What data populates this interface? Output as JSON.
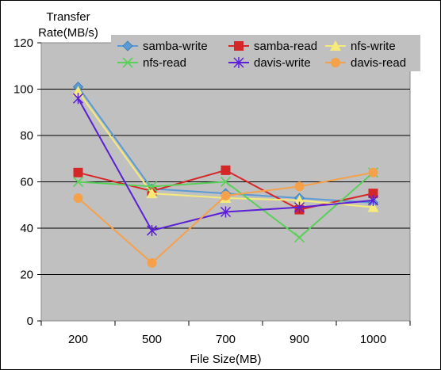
{
  "chart_data": {
    "type": "line",
    "title": "",
    "ylabel_lines": [
      "Transfer",
      "Rate(MB/s)"
    ],
    "xlabel": "File Size(MB)",
    "categories": [
      "200",
      "500",
      "700",
      "900",
      "1000"
    ],
    "ylim": [
      0,
      120
    ],
    "yticks": [
      "0",
      "20",
      "40",
      "60",
      "80",
      "100",
      "120"
    ],
    "grid": "horizontal",
    "legend_position": "top-right",
    "series": [
      {
        "name": "samba-write",
        "color": "#5b9bd5",
        "marker": "diamond",
        "values": [
          101,
          57,
          55,
          53,
          51
        ]
      },
      {
        "name": "samba-read",
        "color": "#d62728",
        "marker": "square",
        "values": [
          64,
          56,
          65,
          48,
          55
        ]
      },
      {
        "name": "nfs-write",
        "color": "#f5ea7a",
        "marker": "triangle",
        "values": [
          99,
          55,
          53,
          52,
          49
        ]
      },
      {
        "name": "nfs-read",
        "color": "#5ad05a",
        "marker": "x",
        "values": [
          60,
          58,
          60,
          36,
          64
        ]
      },
      {
        "name": "davis-write",
        "color": "#5a1fd6",
        "marker": "star",
        "values": [
          96,
          39,
          47,
          49,
          52
        ]
      },
      {
        "name": "davis-read",
        "color": "#f5a04a",
        "marker": "circle",
        "values": [
          53,
          25,
          54,
          58,
          64
        ]
      }
    ]
  }
}
